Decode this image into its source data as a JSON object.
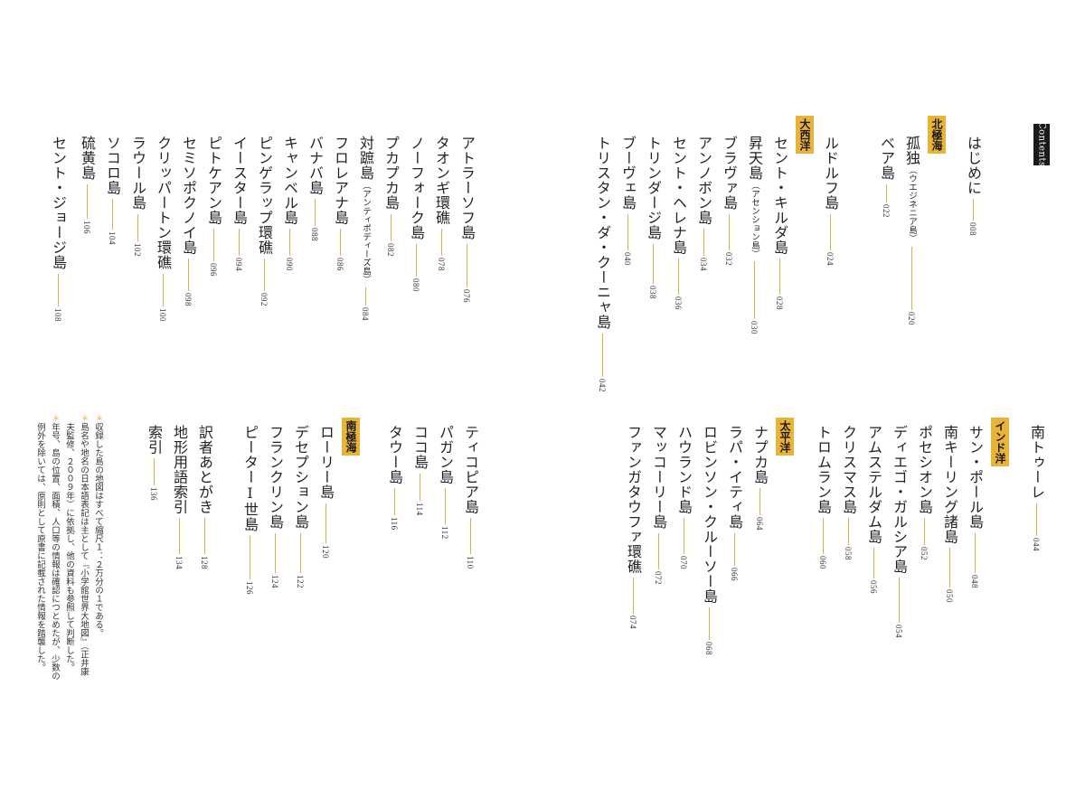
{
  "header": {
    "contents_label": "Contents"
  },
  "top_right": [
    {
      "title": "はじめに",
      "page": "008"
    },
    {
      "section": "北極海"
    },
    {
      "title": "孤独",
      "note": "（ウエジネニア島）",
      "page": "020"
    },
    {
      "title": "ベア島",
      "page": "022"
    },
    {
      "title": "ルドルフ島",
      "page": "024"
    },
    {
      "section": "大西洋"
    },
    {
      "title": "セント・キルダ島",
      "page": "028"
    },
    {
      "title": "昇天島",
      "note": "（アセンション島）",
      "page": "030"
    },
    {
      "title": "ブラヴァ島",
      "page": "032"
    },
    {
      "title": "アンノボン島",
      "page": "034"
    },
    {
      "title": "セント・ヘレナ島",
      "page": "036"
    },
    {
      "title": "トリンダージ島",
      "page": "038"
    },
    {
      "title": "ブーヴェ島",
      "page": "040"
    },
    {
      "title": "トリスタン・ダ・クーニャ島",
      "page": "042"
    }
  ],
  "top_left": [
    {
      "title": "アトラーソフ島",
      "page": "076"
    },
    {
      "title": "タオンギ環礁",
      "page": "078"
    },
    {
      "title": "ノーフォーク島",
      "page": "080"
    },
    {
      "title": "プカプカ島",
      "page": "082"
    },
    {
      "title": "対蹠島",
      "note": "（アンティポディーズ島）",
      "page": "084"
    },
    {
      "title": "フロレアナ島",
      "page": "086"
    },
    {
      "title": "バナバ島",
      "page": "088"
    },
    {
      "title": "キャンベル島",
      "page": "090"
    },
    {
      "title": "ピンゲラップ環礁",
      "page": "092"
    },
    {
      "title": "イースター島",
      "page": "094"
    },
    {
      "title": "ピトケアン島",
      "page": "096"
    },
    {
      "title": "セミソポクノイ島",
      "page": "098"
    },
    {
      "title": "クリッパートン環礁",
      "page": "100"
    },
    {
      "title": "ラウール島",
      "page": "102"
    },
    {
      "title": "ソコロ島",
      "page": "104"
    },
    {
      "title": "硫黄島",
      "page": "106"
    },
    {
      "title": "セント・ジョージ島",
      "page": "108"
    }
  ],
  "bottom_right": [
    {
      "title": "南トゥーレ",
      "page": "044"
    },
    {
      "section": "インド洋"
    },
    {
      "title": "サン・ポール島",
      "page": "048"
    },
    {
      "title": "南キーリング諸島",
      "page": "050"
    },
    {
      "title": "ポセシオン島",
      "page": "052"
    },
    {
      "title": "ディエゴ・ガルシア島",
      "page": "054"
    },
    {
      "title": "アムステルダム島",
      "page": "056"
    },
    {
      "title": "クリスマス島",
      "page": "058"
    },
    {
      "title": "トロムラン島",
      "page": "060"
    },
    {
      "section": "太平洋"
    },
    {
      "title": "ナプカ島",
      "page": "064"
    },
    {
      "title": "ラパ・イティ島",
      "page": "066"
    },
    {
      "title": "ロビンソン・クルーソー島",
      "page": "068"
    },
    {
      "title": "ハウランド島",
      "page": "070"
    },
    {
      "title": "マッコーリー島",
      "page": "072"
    },
    {
      "title": "ファンガタウファ環礁",
      "page": "074"
    }
  ],
  "bottom_left": [
    {
      "title": "ティコピア島",
      "page": "110"
    },
    {
      "title": "パガン島",
      "page": "112"
    },
    {
      "title": "ココ島",
      "page": "114"
    },
    {
      "title": "タウー島",
      "page": "116"
    },
    {
      "section": "南極海"
    },
    {
      "title": "ローリー島",
      "page": "120"
    },
    {
      "title": "デセプション島",
      "page": "122"
    },
    {
      "title": "フランクリン島",
      "page": "124"
    },
    {
      "title": "ピーターⅠ世島",
      "page": "126"
    },
    {
      "title": "訳者あとがき",
      "page": "128"
    },
    {
      "title": "地形用語索引",
      "page": "134"
    },
    {
      "title": "索引",
      "page": "136"
    }
  ],
  "footnote": {
    "lines": [
      "収録した島の地図はすべて縮尺１：２万分の１である。",
      "島名や地名の日本語表記は主として『小学館世界大地図』（正井康",
      "夫監修、２００９年）に依拠し、他の資料も参照して判断した。",
      "年号、島の位置、面積、人口等の情報は確認につとめたが、少数の",
      "例外を除いては、原則として原書に記載された情報を踏襲した。"
    ]
  }
}
